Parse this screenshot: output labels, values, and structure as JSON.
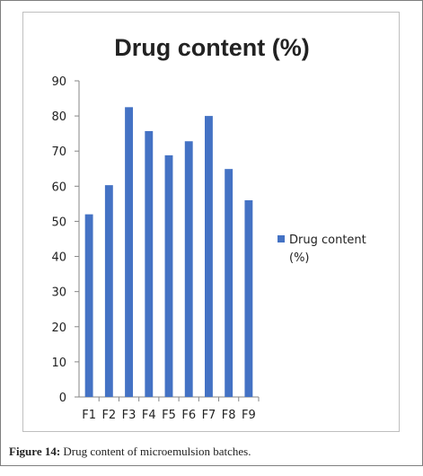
{
  "caption": {
    "label": "Figure 14:",
    "text": "Drug content of microemulsion batches."
  },
  "chart_data": {
    "type": "bar",
    "title": "Drug content (%)",
    "categories": [
      "F1",
      "F2",
      "F3",
      "F4",
      "F5",
      "F6",
      "F7",
      "F8",
      "F9"
    ],
    "series": [
      {
        "name": "Drug content (%)",
        "values": [
          52,
          60.3,
          82.5,
          75.7,
          68.8,
          72.8,
          80,
          64.9,
          56
        ],
        "color": "#4472c4"
      }
    ],
    "legend_lines": [
      "Drug content",
      "(%)"
    ],
    "ylim": [
      0,
      90
    ],
    "yticks": [
      0,
      10,
      20,
      30,
      40,
      50,
      60,
      70,
      80,
      90
    ],
    "xlabel": "",
    "ylabel": "",
    "grid": false,
    "legend_position": "right"
  }
}
